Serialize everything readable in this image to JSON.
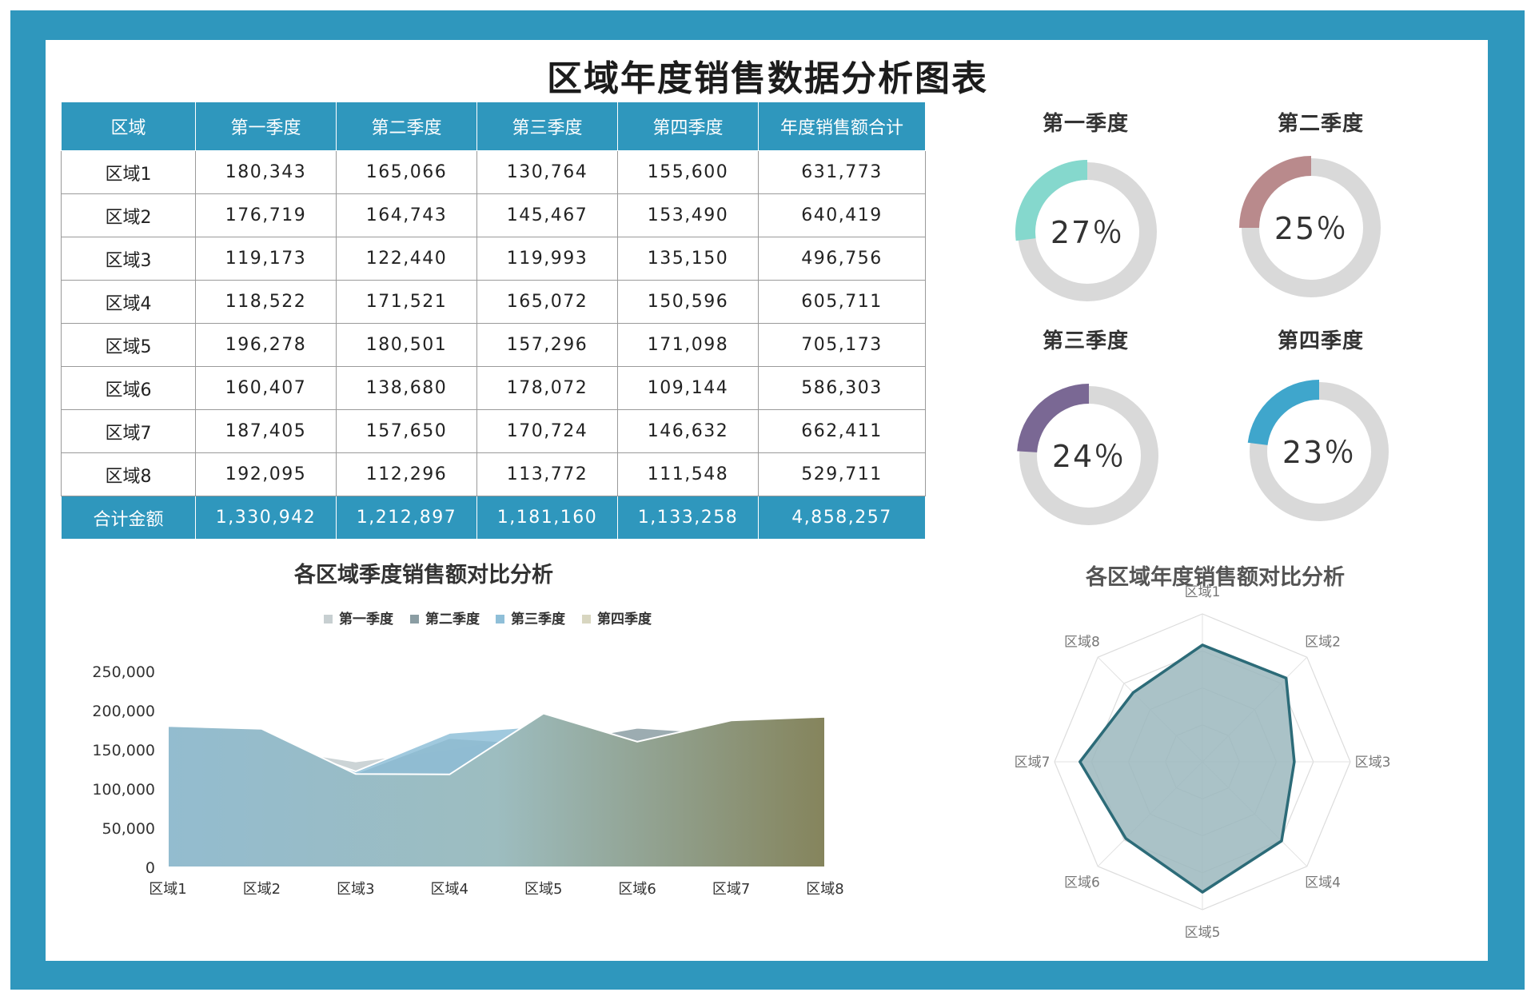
{
  "title": "区域年度销售数据分析图表",
  "table": {
    "headers": [
      "区域",
      "第一季度",
      "第二季度",
      "第三季度",
      "第四季度",
      "年度销售额合计"
    ],
    "rows": [
      [
        "区域1",
        "180,343",
        "165,066",
        "130,764",
        "155,600",
        "631,773"
      ],
      [
        "区域2",
        "176,719",
        "164,743",
        "145,467",
        "153,490",
        "640,419"
      ],
      [
        "区域3",
        "119,173",
        "122,440",
        "119,993",
        "135,150",
        "496,756"
      ],
      [
        "区域4",
        "118,522",
        "171,521",
        "165,072",
        "150,596",
        "605,711"
      ],
      [
        "区域5",
        "196,278",
        "180,501",
        "157,296",
        "171,098",
        "705,173"
      ],
      [
        "区域6",
        "160,407",
        "138,680",
        "178,072",
        "109,144",
        "586,303"
      ],
      [
        "区域7",
        "187,405",
        "157,650",
        "170,724",
        "146,632",
        "662,411"
      ],
      [
        "区域8",
        "192,095",
        "112,296",
        "113,772",
        "111,548",
        "529,711"
      ]
    ],
    "footer": [
      "合计金额",
      "1,330,942",
      "1,212,897",
      "1,181,160",
      "1,133,258",
      "4,858,257"
    ]
  },
  "colors": {
    "frame": "#2f97bd",
    "q1": "#85d8cd",
    "q2": "#b98a8c",
    "q3": "#7a6894",
    "q4": "#3fa6cc",
    "ring": "#d9d9d9",
    "radar_line": "#2c6b78",
    "radar_fill": "#9bb7bd"
  },
  "chart_data": [
    {
      "type": "pie",
      "subtype": "donut",
      "items": [
        {
          "title": "第一季度",
          "value": 27,
          "label": "27％",
          "color_key": "q1"
        },
        {
          "title": "第二季度",
          "value": 25,
          "label": "25％",
          "color_key": "q2"
        },
        {
          "title": "第三季度",
          "value": 24,
          "label": "24％",
          "color_key": "q3"
        },
        {
          "title": "第四季度",
          "value": 23,
          "label": "23％",
          "color_key": "q4"
        }
      ]
    },
    {
      "type": "area",
      "title": "各区域季度销售额对比分析",
      "categories": [
        "区域1",
        "区域2",
        "区域3",
        "区域4",
        "区域5",
        "区域6",
        "区域7",
        "区域8"
      ],
      "series": [
        {
          "name": "第一季度",
          "values": [
            180343,
            176719,
            119173,
            118522,
            196278,
            160407,
            187405,
            192095
          ]
        },
        {
          "name": "第二季度",
          "values": [
            165066,
            164743,
            122440,
            171521,
            180501,
            138680,
            157650,
            112296
          ]
        },
        {
          "name": "第三季度",
          "values": [
            130764,
            145467,
            119993,
            165072,
            157296,
            178072,
            170724,
            113772
          ]
        },
        {
          "name": "第四季度",
          "values": [
            155600,
            153490,
            135150,
            150596,
            171098,
            109144,
            146632,
            111548
          ]
        }
      ],
      "ylim": [
        0,
        250000
      ],
      "yticks": [
        "250,000",
        "200,000",
        "150,000",
        "100,000",
        "50,000",
        "0"
      ],
      "legend": "top",
      "grid": false
    },
    {
      "type": "radar",
      "title": "各区域年度销售额对比分析",
      "categories": [
        "区域1",
        "区域2",
        "区域3",
        "区域4",
        "区域5",
        "区域6",
        "区域7",
        "区域8"
      ],
      "values": [
        631773,
        640419,
        496756,
        605711,
        705173,
        586303,
        662411,
        529711
      ],
      "rmax": 800000
    }
  ]
}
